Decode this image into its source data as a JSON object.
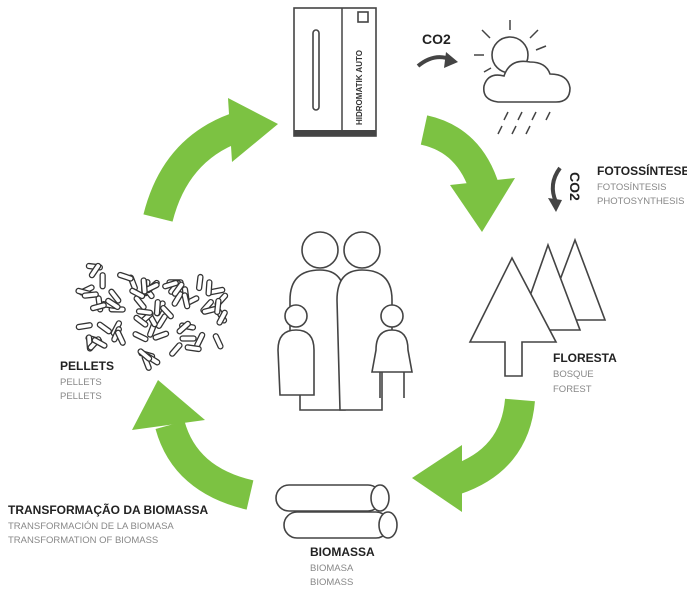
{
  "boiler": {
    "label": "HIDROMATIK AUTO"
  },
  "co2_top": "CO2",
  "co2_right": "CO2",
  "photosynthesis": {
    "title": "FOTOSSÍNTESE",
    "lines": [
      "FOTOSÍNTESIS",
      "PHOTOSYNTHESIS"
    ]
  },
  "forest": {
    "title": "FLORESTA",
    "lines": [
      "BOSQUE",
      "FOREST"
    ]
  },
  "biomass": {
    "title": "BIOMASSA",
    "lines": [
      "BIOMASA",
      "BIOMASS"
    ]
  },
  "transformation": {
    "title": "TRANSFORMAÇÃO DA BIOMASSA",
    "lines": [
      "TRANSFORMACIÓN DE LA BIOMASA",
      "TRANSFORMATION OF BIOMASS"
    ]
  },
  "pellets": {
    "title": "PELLETS",
    "lines": [
      "PELLETS",
      "PELLETS"
    ]
  }
}
